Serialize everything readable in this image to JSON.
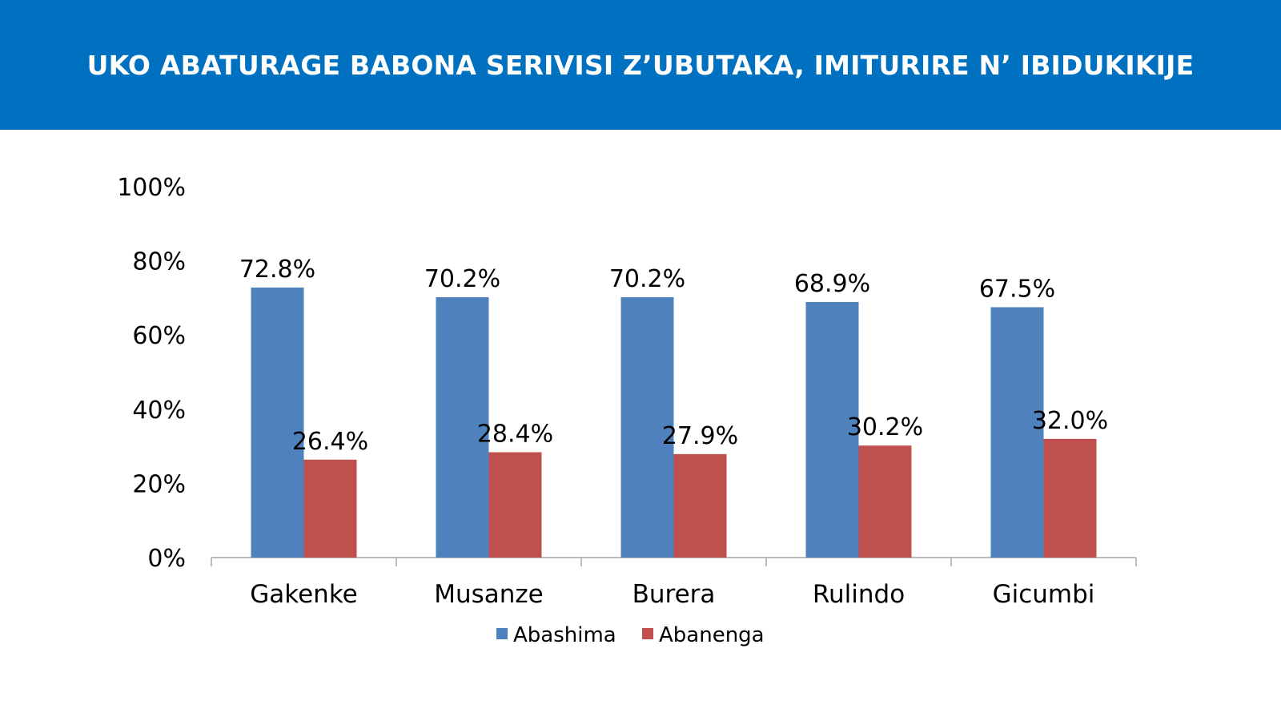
{
  "header": {
    "title": "UKO ABATURAGE BABONA SERIVISI Z’UBUTAKA, IMITURIRE N’ IBIDUKIKIJE"
  },
  "chart_data": {
    "type": "bar",
    "title": "UKO ABATURAGE BABONA SERIVISI Z’UBUTAKA, IMITURIRE N’ IBIDUKIKIJE",
    "categories": [
      "Gakenke",
      "Musanze",
      "Burera",
      "Rulindo",
      "Gicumbi"
    ],
    "series": [
      {
        "name": "Abashima",
        "values": [
          72.8,
          70.2,
          70.2,
          68.9,
          67.5
        ],
        "labels": [
          "72.8%",
          "70.2%",
          "70.2%",
          "68.9%",
          "67.5%"
        ],
        "color": "#4F81BD"
      },
      {
        "name": "Abanenga",
        "values": [
          26.4,
          28.4,
          27.9,
          30.2,
          32.0
        ],
        "labels": [
          "26.4%",
          "28.4%",
          "27.9%",
          "30.2%",
          "32.0%"
        ],
        "color": "#C0504D"
      }
    ],
    "ylim": [
      0,
      100
    ],
    "yticks": [
      "0%",
      "20%",
      "40%",
      "60%",
      "80%",
      "100%"
    ],
    "xlabel": "",
    "ylabel": "",
    "grid": false,
    "legend": "bottom"
  }
}
